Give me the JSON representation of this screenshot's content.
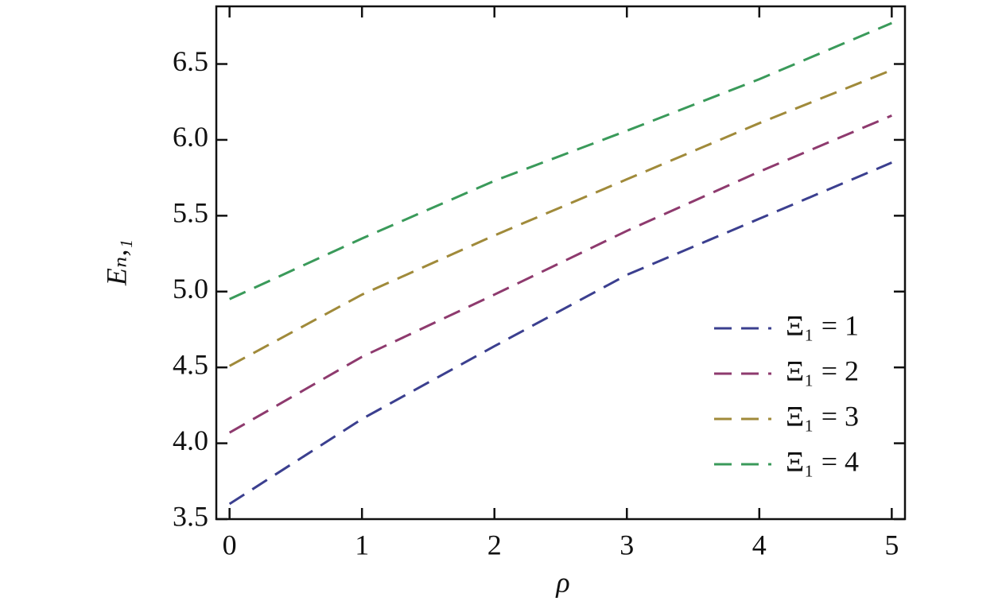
{
  "chart_data": {
    "type": "line",
    "xlabel": "ρ",
    "ylabel": "Eₙ,₁",
    "x": [
      0,
      1,
      2,
      3,
      4,
      5
    ],
    "series": [
      {
        "name": "Ξ₁ = 1",
        "color": "#3b3f8f",
        "values": [
          3.6,
          4.16,
          4.64,
          5.11,
          5.48,
          5.85
        ]
      },
      {
        "name": "Ξ₁ = 2",
        "color": "#8e3a6e",
        "values": [
          4.07,
          4.57,
          4.98,
          5.4,
          5.79,
          6.16
        ]
      },
      {
        "name": "Ξ₁ = 3",
        "color": "#a08a3a",
        "values": [
          4.51,
          4.98,
          5.37,
          5.74,
          6.11,
          6.46
        ]
      },
      {
        "name": "Ξ₁ = 4",
        "color": "#3a9a5a",
        "values": [
          4.95,
          5.35,
          5.73,
          6.06,
          6.4,
          6.77
        ]
      }
    ],
    "xlim": [
      -0.1,
      5.1
    ],
    "ylim": [
      3.5,
      6.88
    ],
    "xticks": [
      0,
      1,
      2,
      3,
      4,
      5
    ],
    "yticks": [
      3.5,
      {
        "value": 4,
        "label": "4.0"
      },
      4.5,
      {
        "value": 5,
        "label": "5.0"
      },
      5.5,
      {
        "value": 6,
        "label": "6.0"
      },
      6.5
    ],
    "legend": "lower right",
    "grid": false
  }
}
